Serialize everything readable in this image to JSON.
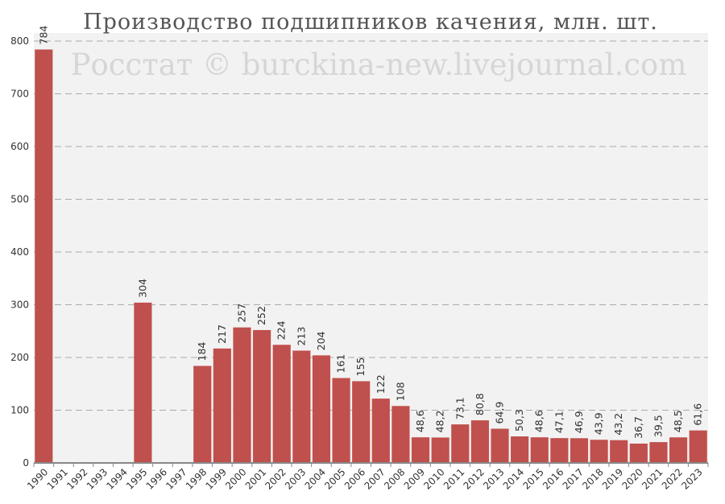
{
  "chart_data": {
    "type": "bar",
    "title": "Производство подшипников качения, млн. шт.",
    "watermark": "Росстат © burckina-new.livejournal.com",
    "xlabel": "",
    "ylabel": "",
    "ylim": [
      0,
      800
    ],
    "yticks": [
      0,
      100,
      200,
      300,
      400,
      500,
      600,
      700,
      800
    ],
    "grid": true,
    "categories": [
      "1990",
      "1991",
      "1992",
      "1993",
      "1994",
      "1995",
      "1996",
      "1997",
      "1998",
      "1999",
      "2000",
      "2001",
      "2002",
      "2003",
      "2004",
      "2005",
      "2006",
      "2007",
      "2008",
      "2009",
      "2010",
      "2011",
      "2012",
      "2013",
      "2014",
      "2015",
      "2016",
      "2017",
      "2018",
      "2019",
      "2020",
      "2021",
      "2022",
      "2023"
    ],
    "values": [
      784,
      null,
      null,
      null,
      null,
      304,
      null,
      null,
      184,
      217,
      257,
      252,
      224,
      213,
      204,
      161,
      155,
      122,
      108,
      48.6,
      48.2,
      73.1,
      80.8,
      64.9,
      50.3,
      48.6,
      47.1,
      46.9,
      43.9,
      43.2,
      36.7,
      39.5,
      48.5,
      61.6
    ],
    "labels": [
      "784",
      "",
      "",
      "",
      "",
      "304",
      "",
      "",
      "184",
      "217",
      "257",
      "252",
      "224",
      "213",
      "204",
      "161",
      "155",
      "122",
      "108",
      "48,6",
      "48,2",
      "73,1",
      "80,8",
      "64,9",
      "50,3",
      "48,6",
      "47,1",
      "46,9",
      "43,9",
      "43,2",
      "36,7",
      "39,5",
      "48,5",
      "61,6"
    ],
    "bar_color": "#c0504d",
    "plot_bg": "#f2f2f2"
  }
}
